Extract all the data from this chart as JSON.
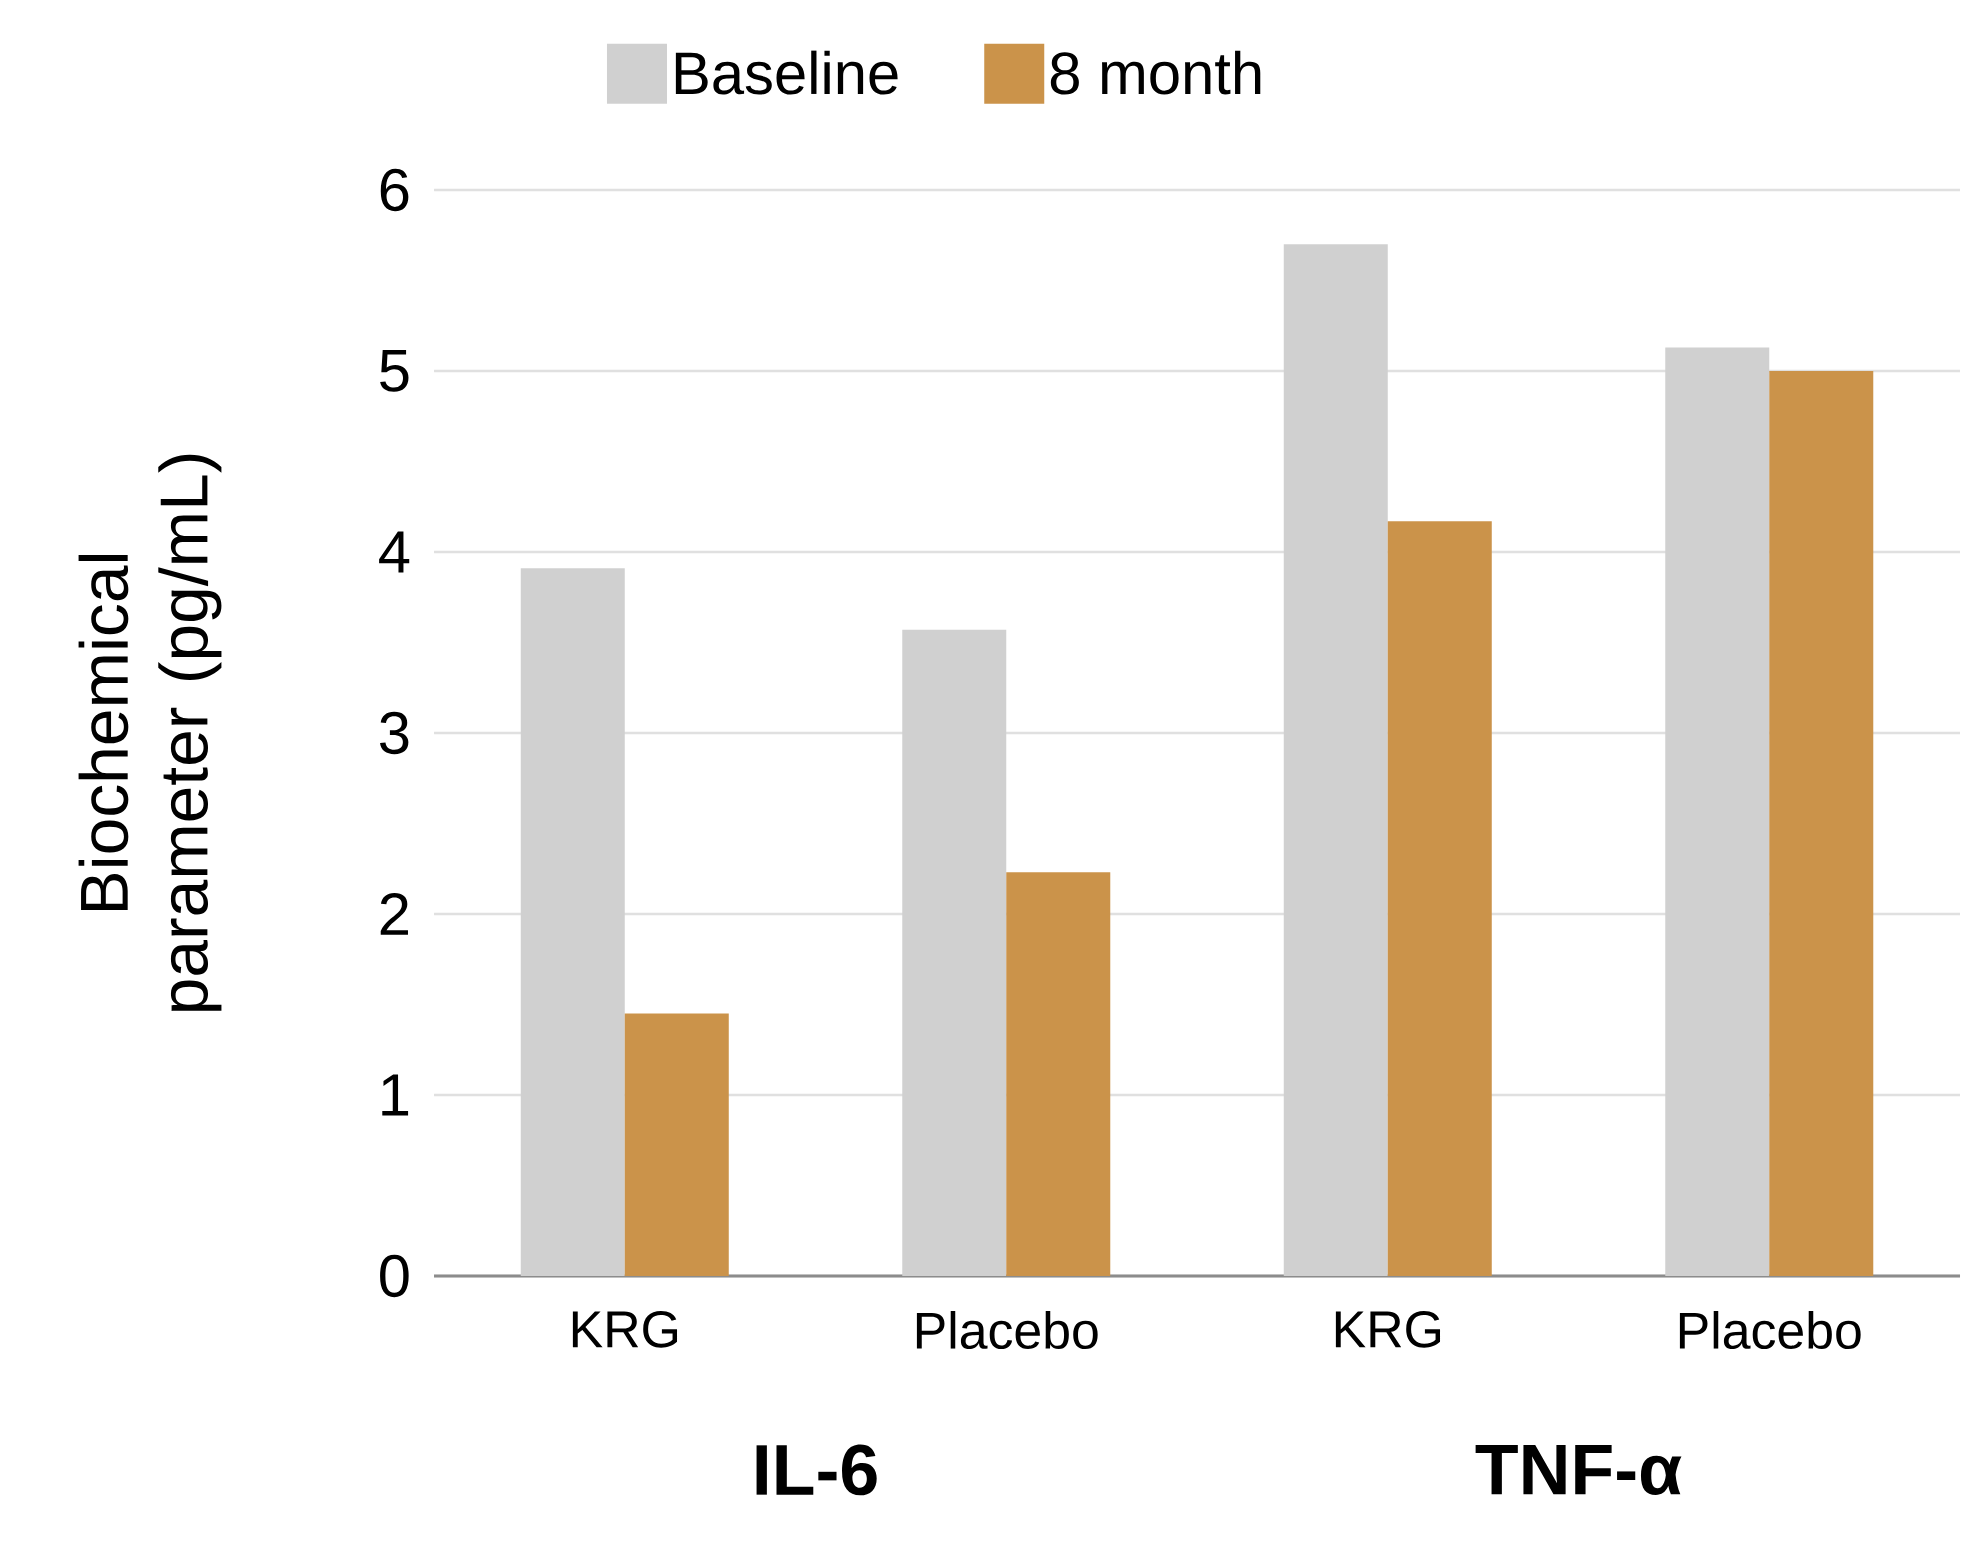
{
  "chart_data": {
    "type": "bar",
    "ylabel": "Biochemical parameter (pg/mL)",
    "categories": [
      "KRG",
      "Placebo",
      "KRG",
      "Placebo"
    ],
    "series": [
      {
        "name": "Baseline",
        "color": "#d0d0d0",
        "values": [
          3.91,
          3.57,
          5.7,
          5.13
        ]
      },
      {
        "name": "8 month",
        "color": "#cb934a",
        "values": [
          1.45,
          2.23,
          4.17,
          5.0
        ]
      }
    ],
    "annotations": [
      "IL-6",
      "TNF-α"
    ],
    "ylim": [
      0,
      6
    ],
    "yticks": [
      0,
      1,
      2,
      3,
      4,
      5,
      6
    ],
    "grid": "y",
    "legend": "top"
  }
}
